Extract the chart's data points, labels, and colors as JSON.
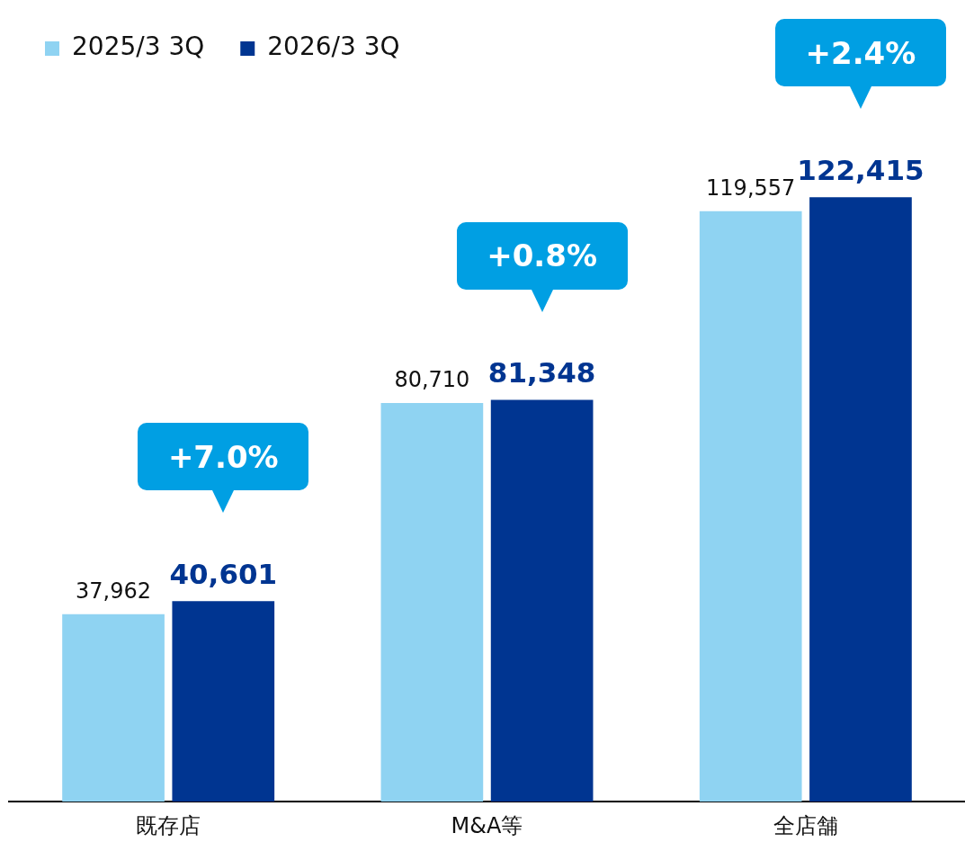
{
  "chart_data": {
    "type": "bar",
    "categories": [
      "既存店",
      "M&A等",
      "全店舗"
    ],
    "series": [
      {
        "name": "2025/3 3Q",
        "color": "#8fd3f2",
        "values": [
          37962,
          80710,
          119557
        ],
        "value_labels": [
          "37,962",
          "80,710",
          "119,557"
        ]
      },
      {
        "name": "2026/3 3Q",
        "color": "#003591",
        "values": [
          40601,
          81348,
          122415
        ],
        "value_labels": [
          "40,601",
          "81,348",
          "122,415"
        ]
      }
    ],
    "legend": "top left",
    "grid": false,
    "tick_labels": "x",
    "annotations": [
      "+7.0%",
      "+0.8%",
      "+2.4%"
    ]
  }
}
